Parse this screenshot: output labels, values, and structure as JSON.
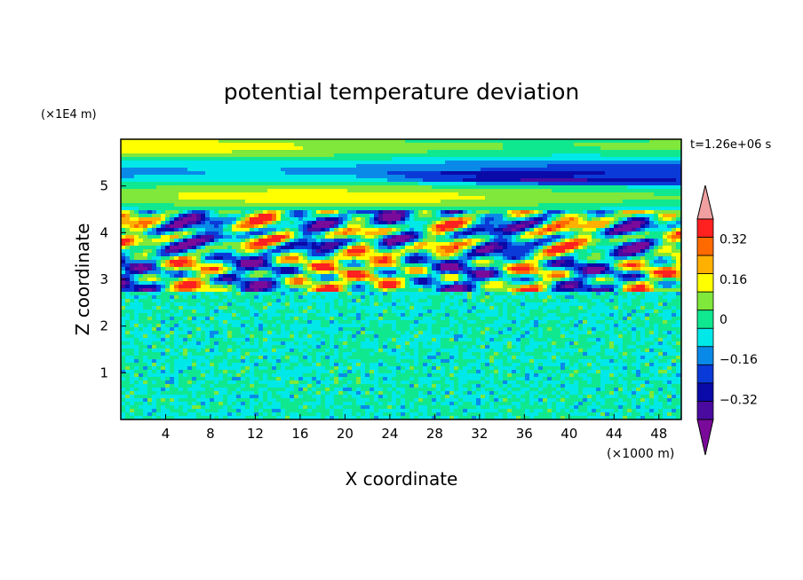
{
  "chart_data": {
    "type": "heatmap",
    "title": "potential temperature deviation",
    "xlabel": "X coordinate",
    "ylabel": "Z coordinate",
    "x_unit": "(×1000 m)",
    "y_unit": "(×1E4 m)",
    "time_label": "t=1.26e+06 s",
    "xlim": [
      0,
      50
    ],
    "ylim": [
      0,
      6
    ],
    "x_ticks": [
      4,
      8,
      12,
      16,
      20,
      24,
      28,
      32,
      36,
      40,
      44,
      48
    ],
    "y_ticks": [
      1,
      2,
      3,
      4,
      5
    ],
    "colorbar": {
      "levels": [
        -0.4,
        -0.32,
        -0.24,
        -0.16,
        -0.08,
        0,
        0.08,
        0.16,
        0.24,
        0.32,
        0.4
      ],
      "tick_values": [
        -0.32,
        -0.16,
        0,
        0.16,
        0.32
      ],
      "tick_labels": [
        "−0.32",
        "−0.16",
        "0",
        "0.16",
        "0.32"
      ],
      "colors": [
        "#7a0a9a",
        "#4a0aa0",
        "#0a0aa8",
        "#0a3ad8",
        "#0a8ae8",
        "#00e8e8",
        "#10e890",
        "#7fe83a",
        "#ffff00",
        "#ffb000",
        "#ff6a00",
        "#ff2020",
        "#f0a0a0"
      ]
    },
    "regions": [
      {
        "z_range": [
          0,
          2.7
        ],
        "pattern": "fine-scale noise",
        "values": [
          -0.08,
          0.08
        ]
      },
      {
        "z_range": [
          2.7,
          4.5
        ],
        "pattern": "large-amplitude cells",
        "values": [
          -0.4,
          0.4
        ]
      },
      {
        "z_range": [
          4.5,
          6.0
        ],
        "pattern": "horizontal layers",
        "values": [
          -0.24,
          0.32
        ]
      }
    ]
  }
}
